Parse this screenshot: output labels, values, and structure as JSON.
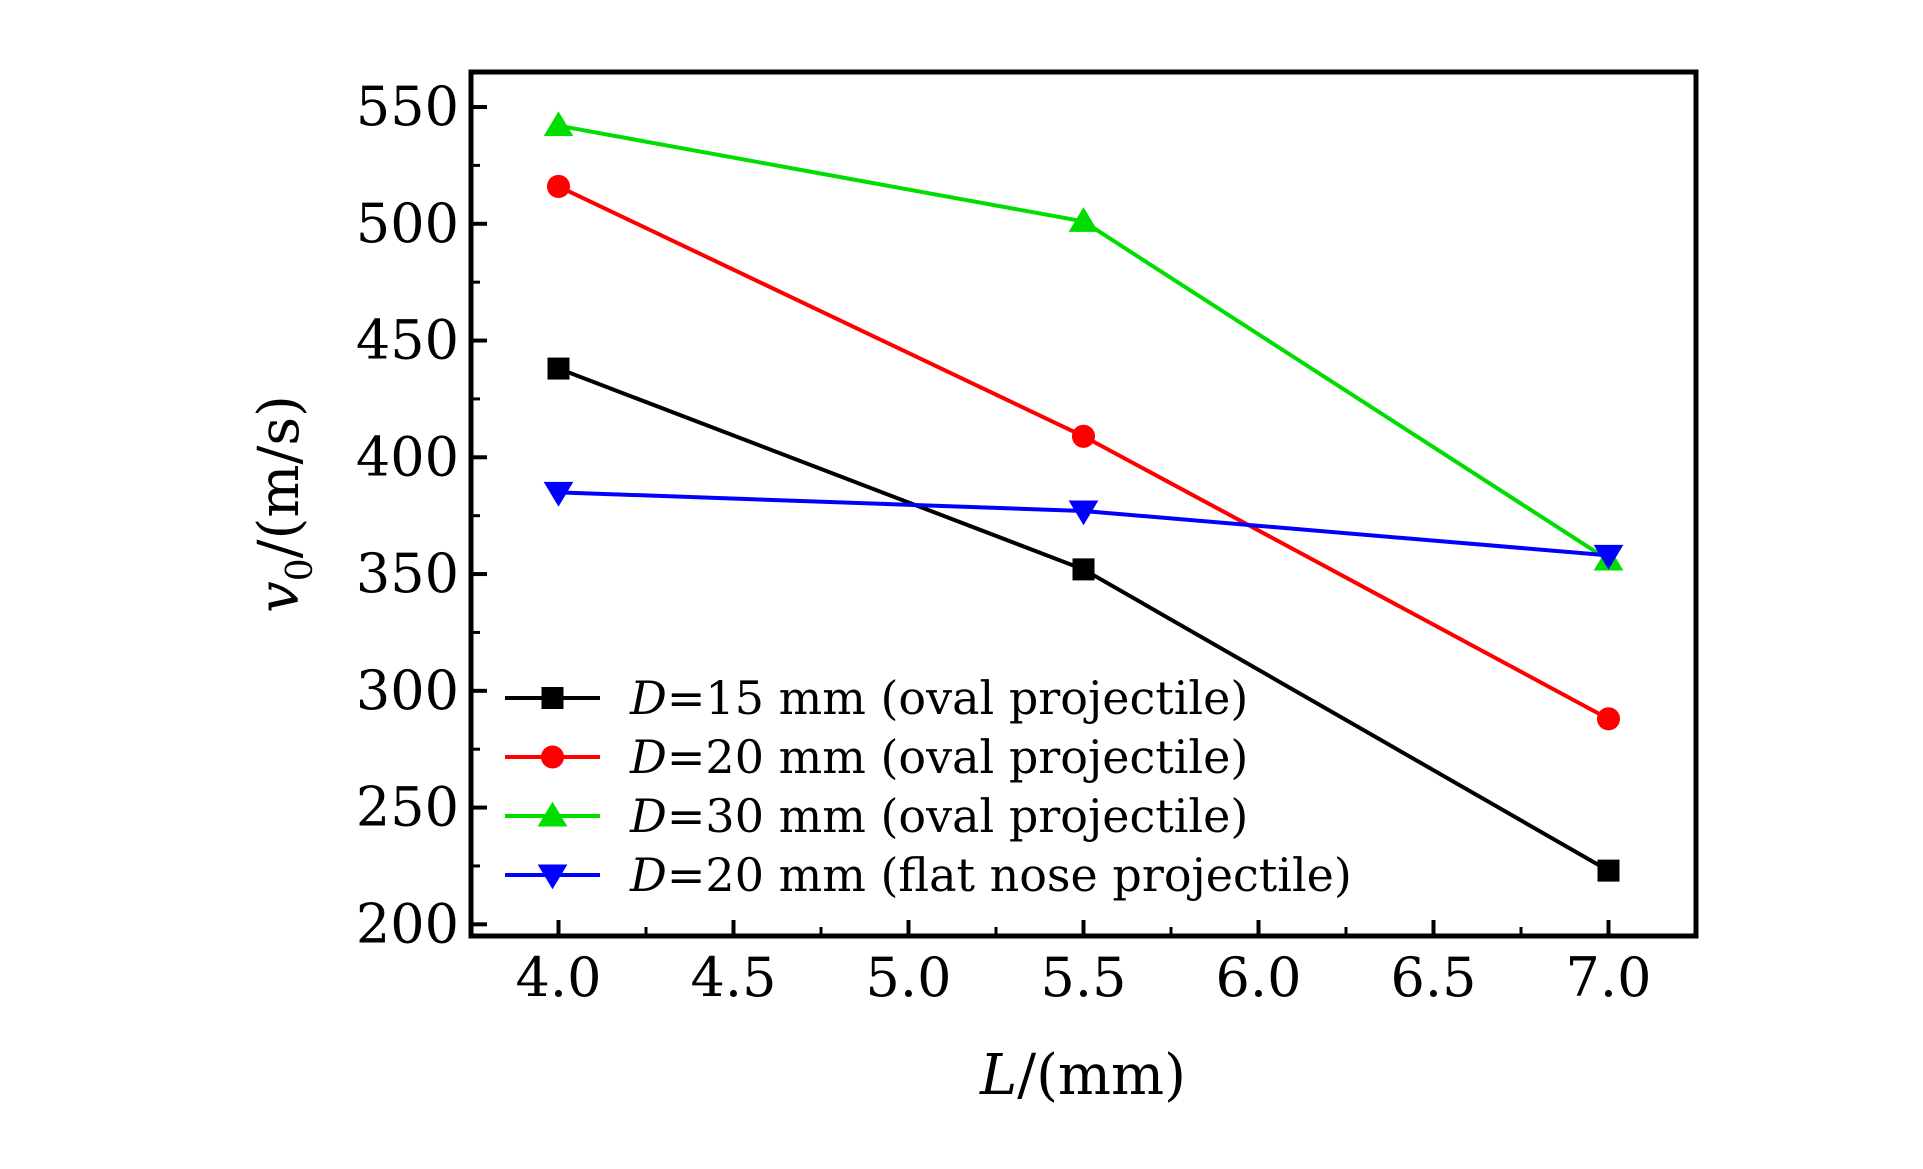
{
  "chart_data": {
    "type": "line",
    "title": "",
    "xlabel": {
      "var": "L",
      "unit": "/(mm)"
    },
    "ylabel": {
      "var": "v",
      "sub": "0",
      "unit": "/(m/s)"
    },
    "xlim": [
      3.75,
      7.25
    ],
    "ylim": [
      195,
      565
    ],
    "xticks": [
      4.0,
      4.5,
      5.0,
      5.5,
      6.0,
      6.5,
      7.0
    ],
    "xtick_labels": [
      "4.0",
      "4.5",
      "5.0",
      "5.5",
      "6.0",
      "6.5",
      "7.0"
    ],
    "yticks": [
      200,
      250,
      300,
      350,
      400,
      450,
      500,
      550
    ],
    "ytick_labels": [
      "200",
      "250",
      "300",
      "350",
      "400",
      "450",
      "500",
      "550"
    ],
    "grid": false,
    "legend_position": "bottom-left",
    "series": [
      {
        "id": "d15",
        "var": "D",
        "name": "=15 mm (oval projectile)",
        "color": "#000000",
        "marker": "square",
        "x": [
          4.0,
          5.5,
          7.0
        ],
        "values": [
          438,
          352,
          223
        ]
      },
      {
        "id": "d20",
        "var": "D",
        "name": "=20 mm (oval projectile)",
        "color": "#ff0000",
        "marker": "circle",
        "x": [
          4.0,
          5.5,
          7.0
        ],
        "values": [
          516,
          409,
          288
        ]
      },
      {
        "id": "d30",
        "var": "D",
        "name": "=30 mm (oval projectile)",
        "color": "#00dd00",
        "marker": "triangle-up",
        "x": [
          4.0,
          5.5,
          7.0
        ],
        "values": [
          542,
          501,
          356
        ]
      },
      {
        "id": "d20flat",
        "var": "D",
        "name": "=20 mm (flat nose projectile)",
        "color": "#0000ff",
        "marker": "triangle-down",
        "x": [
          4.0,
          5.5,
          7.0
        ],
        "values": [
          385,
          377,
          358
        ]
      }
    ]
  }
}
